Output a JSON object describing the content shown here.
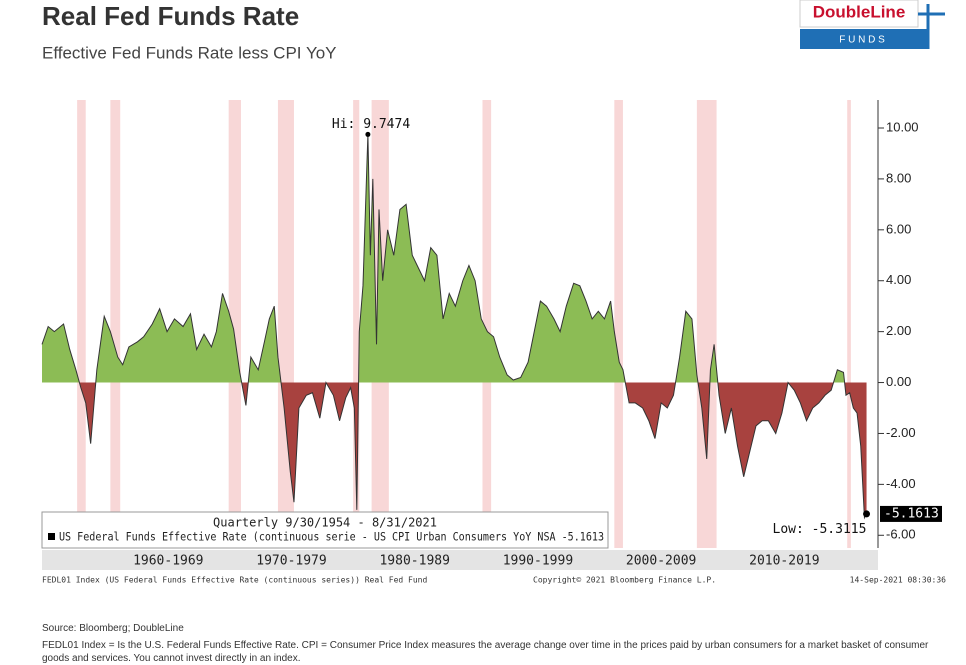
{
  "logo": {
    "name": "DoubleLine",
    "sub": "F U N D S"
  },
  "chart_data": {
    "type": "area",
    "title": "Real Fed Funds Rate",
    "subtitle": "Effective Fed Funds Rate less CPI YoY",
    "period": "Quarterly 9/30/1954 - 8/31/2021",
    "series": [
      {
        "name": "US Federal Funds Effective Rate (continuous serie - US CPI Urban Consumers YoY NSA -5.1613",
        "color": "#8cbc55",
        "negative_color": "#a8423f",
        "x": [
          1954.75,
          1955.25,
          1955.75,
          1956.5,
          1957.0,
          1957.5,
          1957.9,
          1958.3,
          1958.7,
          1959.2,
          1959.8,
          1960.3,
          1960.9,
          1961.3,
          1961.8,
          1962.5,
          1963.0,
          1963.7,
          1964.3,
          1964.9,
          1965.5,
          1966.2,
          1966.8,
          1967.3,
          1967.9,
          1968.5,
          1968.9,
          1969.4,
          1969.9,
          1970.3,
          1970.8,
          1971.3,
          1971.7,
          1972.3,
          1972.8,
          1973.2,
          1973.6,
          1973.9,
          1974.4,
          1974.9,
          1975.2,
          1975.6,
          1976.2,
          1976.7,
          1977.3,
          1977.8,
          1978.4,
          1978.9,
          1979.4,
          1979.8,
          1980.1,
          1980.3,
          1980.5,
          1980.8,
          1981.2,
          1981.4,
          1981.6,
          1981.9,
          1982.1,
          1982.4,
          1982.8,
          1983.3,
          1983.8,
          1984.3,
          1984.8,
          1985.3,
          1985.8,
          1986.3,
          1986.8,
          1987.3,
          1987.8,
          1988.3,
          1988.9,
          1989.4,
          1989.9,
          1990.4,
          1990.9,
          1991.4,
          1991.9,
          1992.5,
          1993.0,
          1993.6,
          1994.2,
          1994.7,
          1995.2,
          1995.7,
          1996.3,
          1996.8,
          1997.3,
          1997.9,
          1998.4,
          1998.9,
          1999.4,
          1999.9,
          2000.4,
          2000.9,
          2001.2,
          2001.6,
          2001.9,
          2002.4,
          2002.9,
          2003.5,
          2004.0,
          2004.5,
          2005.0,
          2005.5,
          2006.0,
          2006.5,
          2007.0,
          2007.5,
          2007.9,
          2008.3,
          2008.7,
          2009.0,
          2009.3,
          2009.7,
          2010.2,
          2010.7,
          2011.2,
          2011.7,
          2012.2,
          2012.7,
          2013.2,
          2013.7,
          2014.3,
          2014.8,
          2015.3,
          2015.8,
          2016.3,
          2016.8,
          2017.3,
          2017.8,
          2018.3,
          2018.8,
          2019.3,
          2019.8,
          2020.0,
          2020.3,
          2020.6,
          2020.9,
          2021.2,
          2021.5,
          2021.67
        ],
        "values": [
          1.5,
          2.2,
          2.0,
          2.3,
          1.3,
          0.5,
          -0.2,
          -0.8,
          -2.4,
          0.5,
          2.6,
          2.0,
          1.0,
          0.7,
          1.4,
          1.6,
          1.8,
          2.3,
          2.9,
          2.0,
          2.5,
          2.2,
          2.7,
          1.3,
          1.9,
          1.4,
          2.0,
          3.5,
          2.8,
          2.1,
          0.4,
          -0.9,
          1.0,
          0.5,
          1.6,
          2.5,
          3.0,
          1.0,
          -1.0,
          -3.5,
          -4.7,
          -1.0,
          -0.5,
          -0.4,
          -1.4,
          0.0,
          -0.5,
          -1.5,
          -0.6,
          -0.2,
          -1.0,
          -5.0,
          2.0,
          3.8,
          9.7474,
          5.0,
          8.0,
          1.5,
          6.8,
          4.0,
          6.0,
          5.0,
          6.8,
          7.0,
          5.0,
          4.5,
          4.0,
          5.3,
          5.0,
          2.5,
          3.5,
          3.0,
          4.0,
          4.6,
          4.0,
          2.5,
          2.0,
          1.8,
          1.0,
          0.3,
          0.1,
          0.2,
          0.8,
          2.0,
          3.2,
          3.0,
          2.5,
          2.0,
          3.0,
          3.9,
          3.8,
          3.2,
          2.5,
          2.8,
          2.5,
          3.2,
          2.0,
          0.8,
          0.5,
          -0.8,
          -0.8,
          -1.0,
          -1.5,
          -2.2,
          -0.8,
          -1.0,
          -0.5,
          1.0,
          2.8,
          2.5,
          0.3,
          -1.0,
          -3.0,
          0.5,
          1.5,
          -0.5,
          -2.0,
          -1.0,
          -2.5,
          -3.7,
          -2.7,
          -1.7,
          -1.5,
          -1.5,
          -2.0,
          -1.2,
          0.0,
          -0.3,
          -0.8,
          -1.5,
          -1.0,
          -0.8,
          -0.5,
          -0.3,
          0.5,
          0.4,
          -0.5,
          -0.4,
          -1.0,
          -1.2,
          -2.5,
          -5.3115,
          -5.1613
        ]
      }
    ],
    "recessions": [
      [
        1957.6,
        1958.3
      ],
      [
        1960.3,
        1961.1
      ],
      [
        1969.9,
        1970.9
      ],
      [
        1973.9,
        1975.2
      ],
      [
        1980.0,
        1980.5
      ],
      [
        1981.5,
        1982.9
      ],
      [
        1990.5,
        1991.2
      ],
      [
        2001.2,
        2001.9
      ],
      [
        2007.9,
        2009.5
      ],
      [
        2020.1,
        2020.4
      ]
    ],
    "annotations": [
      {
        "label": "Hi: 9.7474",
        "value": 9.7474,
        "x": 1981.2
      },
      {
        "label": "Low: -5.3115",
        "value": -5.3115,
        "x": 2021.5
      }
    ],
    "xlim": [
      1954.75,
      2022.6
    ],
    "xticks": [
      {
        "value": 1965,
        "label": "1960-1969"
      },
      {
        "value": 1975,
        "label": "1970-1979"
      },
      {
        "value": 1985,
        "label": "1980-1989"
      },
      {
        "value": 1995,
        "label": "1990-1999"
      },
      {
        "value": 2005,
        "label": "2000-2009"
      },
      {
        "value": 2015,
        "label": "2010-2019"
      }
    ],
    "ylim": [
      -6.5,
      11.1
    ],
    "yticks": [
      {
        "value": 10,
        "label": "10.00"
      },
      {
        "value": 8,
        "label": "8.00"
      },
      {
        "value": 6,
        "label": "6.00"
      },
      {
        "value": 4,
        "label": "4.00"
      },
      {
        "value": 2,
        "label": "2.00"
      },
      {
        "value": 0,
        "label": "0.00"
      },
      {
        "value": -2,
        "label": "-2.00"
      },
      {
        "value": -4,
        "label": "-4.00"
      },
      {
        "value": -6,
        "label": "-6.00"
      }
    ],
    "footer_left": "FEDL01 Index (US Federal Funds Effective Rate (continuous series)) Real Fed Fund",
    "footer_mid": "Copyright© 2021 Bloomberg Finance L.P.",
    "footer_right": "14-Sep-2021 08:30:36",
    "source": "Source: Bloomberg; DoubleLine",
    "note": "FEDL01 Index = Is the U.S. Federal Funds Effective Rate. CPI = Consumer Price Index measures the average change over time in the prices paid by urban consumers for a market basket of consumer goods and services. You cannot invest directly in an index."
  }
}
